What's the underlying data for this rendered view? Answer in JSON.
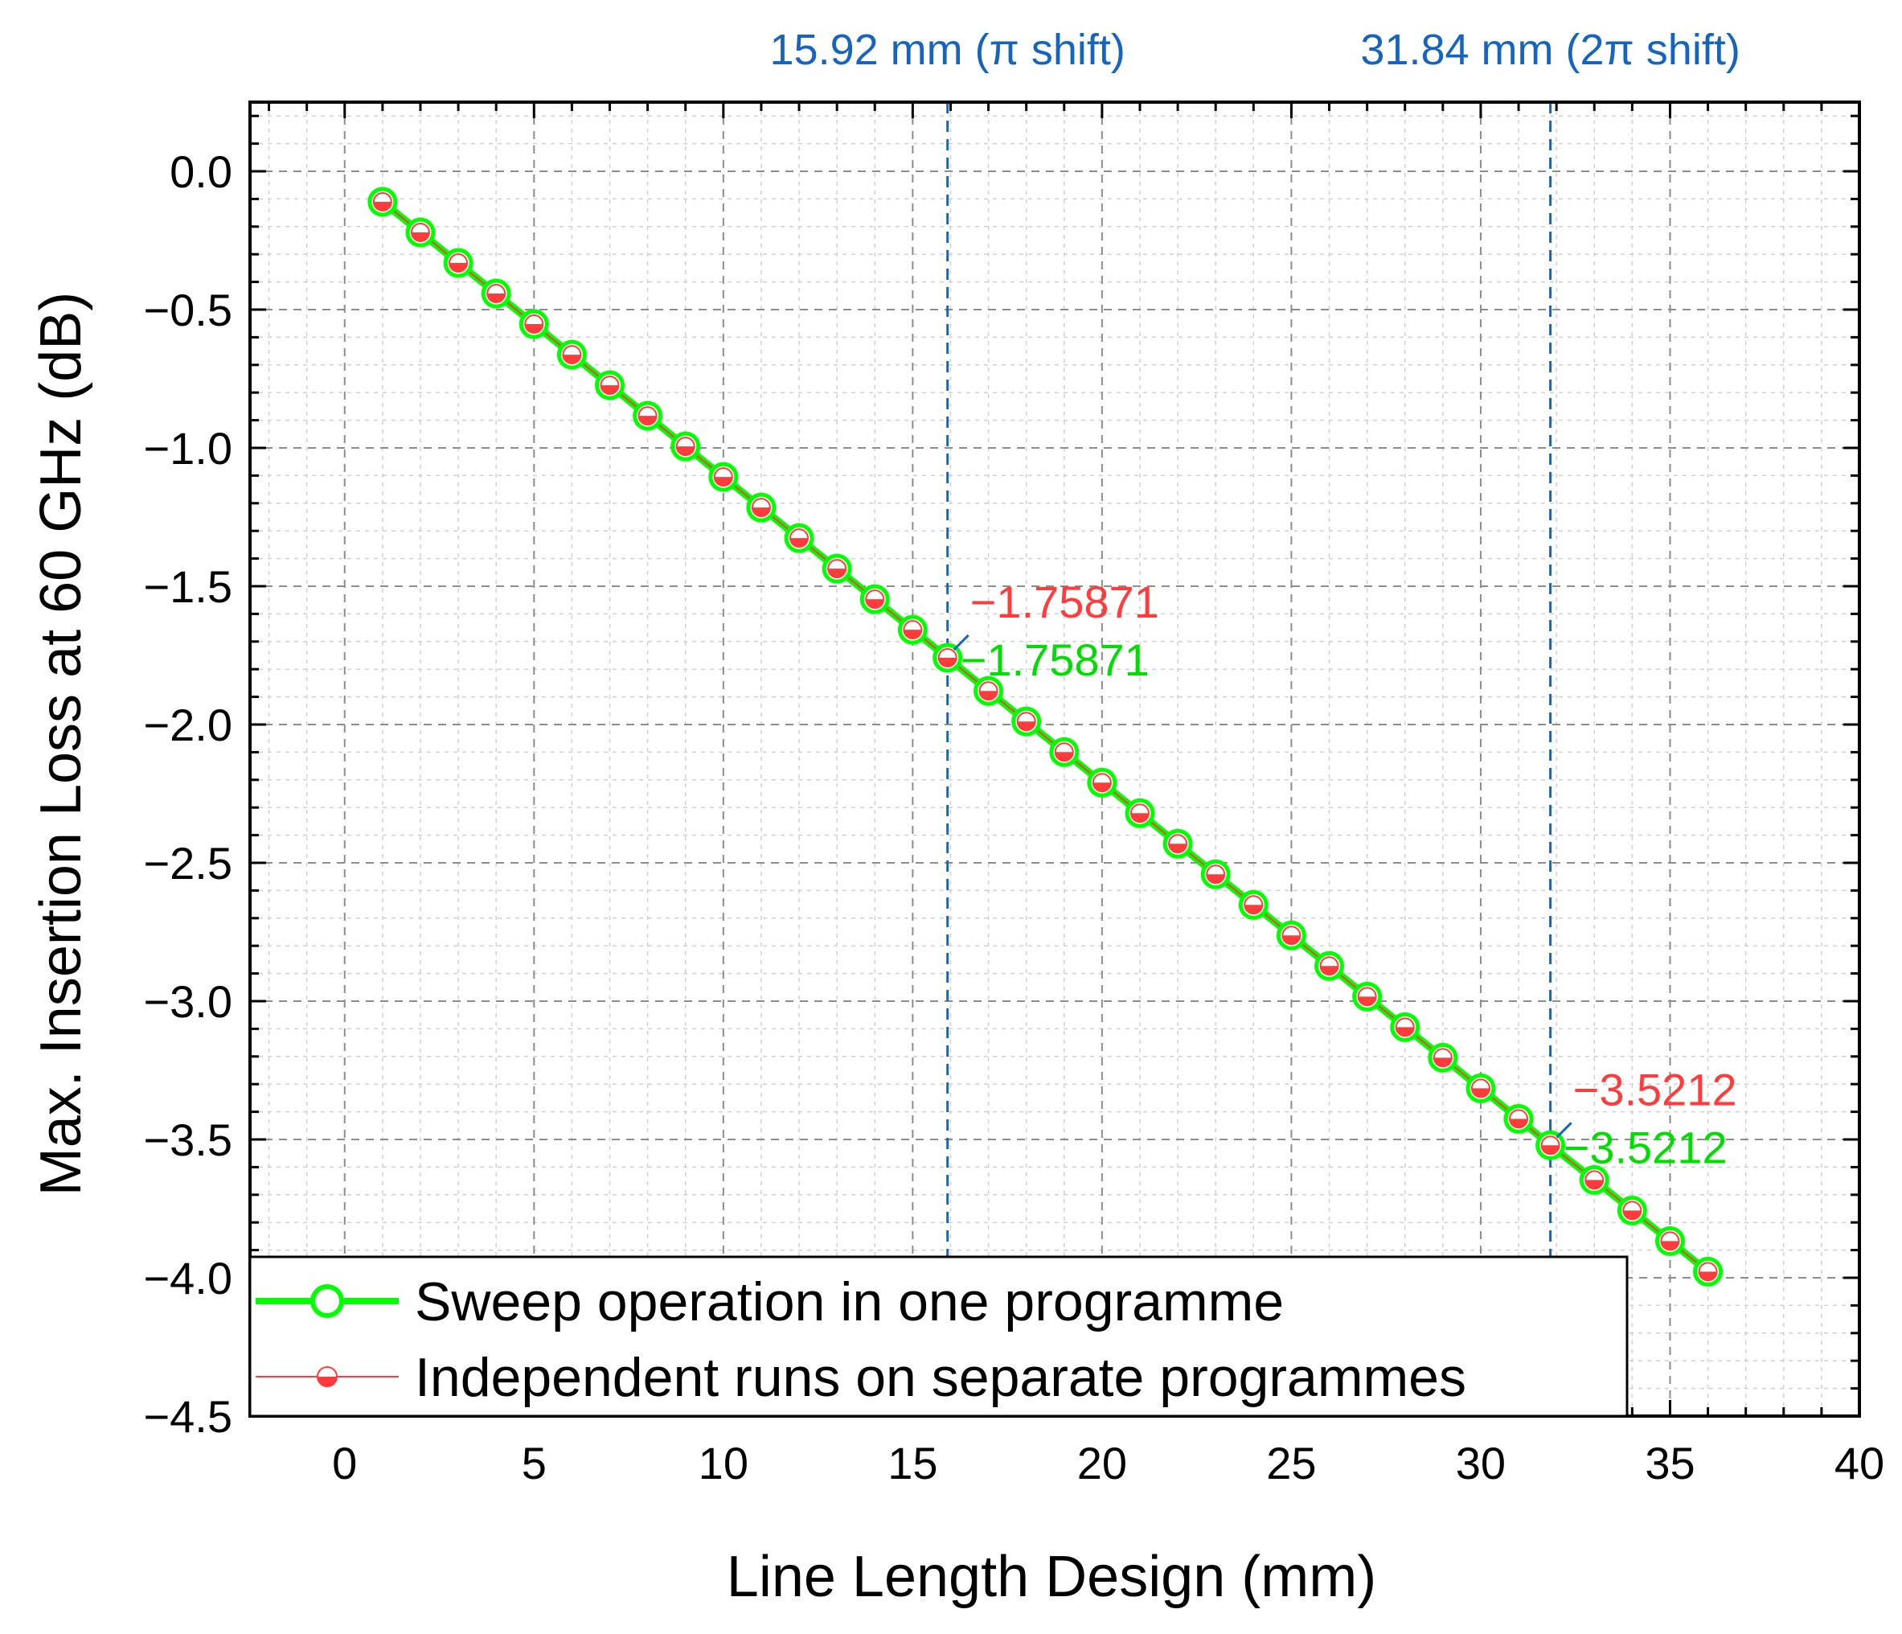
{
  "chart_data": {
    "type": "line",
    "xlabel": "Line Length Design (mm)",
    "ylabel": "Max. Insertion Loss at 60 GHz (dB)",
    "xlim": [
      -2.5,
      40
    ],
    "ylim": [
      -4.5,
      0.25
    ],
    "x_ticks": [
      0,
      5,
      10,
      15,
      20,
      25,
      30,
      35,
      40
    ],
    "x_tick_labels": [
      "0",
      "5",
      "10",
      "15",
      "20",
      "25",
      "30",
      "35",
      "40"
    ],
    "y_ticks": [
      0.0,
      -0.5,
      -1.0,
      -1.5,
      -2.0,
      -2.5,
      -3.0,
      -3.5,
      -4.0,
      -4.5
    ],
    "y_tick_labels": [
      "0.0",
      "−0.5",
      "−1.0",
      "−1.5",
      "−2.0",
      "−2.5",
      "−3.0",
      "−3.5",
      "−4.0",
      "−4.5"
    ],
    "grid": true,
    "legend_position": "bottom-left",
    "x": [
      1,
      2,
      3,
      4,
      5,
      6,
      7,
      8,
      9,
      10,
      11,
      12,
      13,
      14,
      15,
      15.92,
      17,
      18,
      19,
      20,
      21,
      22,
      23,
      24,
      25,
      26,
      27,
      28,
      29,
      30,
      31,
      31.84,
      33,
      34,
      35,
      36
    ],
    "series": [
      {
        "name": "Sweep operation in one programme",
        "color": "#00ff00",
        "values": [
          -0.1105,
          -0.221,
          -0.3315,
          -0.442,
          -0.5525,
          -0.663,
          -0.7735,
          -0.884,
          -0.9945,
          -1.105,
          -1.2155,
          -1.326,
          -1.4365,
          -1.547,
          -1.6575,
          -1.75871,
          -1.8785,
          -1.989,
          -2.0995,
          -2.21,
          -2.3205,
          -2.431,
          -2.5415,
          -2.652,
          -2.7625,
          -2.873,
          -2.9835,
          -3.094,
          -3.2045,
          -3.315,
          -3.4255,
          -3.5212,
          -3.6465,
          -3.757,
          -3.8675,
          -3.978
        ]
      },
      {
        "name": "Independent runs on separate programmes",
        "color": "#ff3b3b",
        "values": [
          -0.1105,
          -0.221,
          -0.3315,
          -0.442,
          -0.5525,
          -0.663,
          -0.7735,
          -0.884,
          -0.9945,
          -1.105,
          -1.2155,
          -1.326,
          -1.4365,
          -1.547,
          -1.6575,
          -1.75871,
          -1.8785,
          -1.989,
          -2.0995,
          -2.21,
          -2.3205,
          -2.431,
          -2.5415,
          -2.652,
          -2.7625,
          -2.873,
          -2.9835,
          -3.094,
          -3.2045,
          -3.315,
          -3.4255,
          -3.5212,
          -3.6465,
          -3.757,
          -3.8675,
          -3.978
        ]
      }
    ],
    "vertical_lines": [
      {
        "x": 15.92,
        "label": "15.92 mm (π shift)",
        "color": "#1565c0"
      },
      {
        "x": 31.84,
        "label": "31.84 mm (2π shift)",
        "color": "#1565c0"
      }
    ],
    "annotations": [
      {
        "x": 15.92,
        "y": -1.75871,
        "red_text": "−1.75871",
        "green_text": "−1.75871"
      },
      {
        "x": 31.84,
        "y": -3.5212,
        "red_text": "−3.5212",
        "green_text": "−3.5212"
      }
    ]
  }
}
